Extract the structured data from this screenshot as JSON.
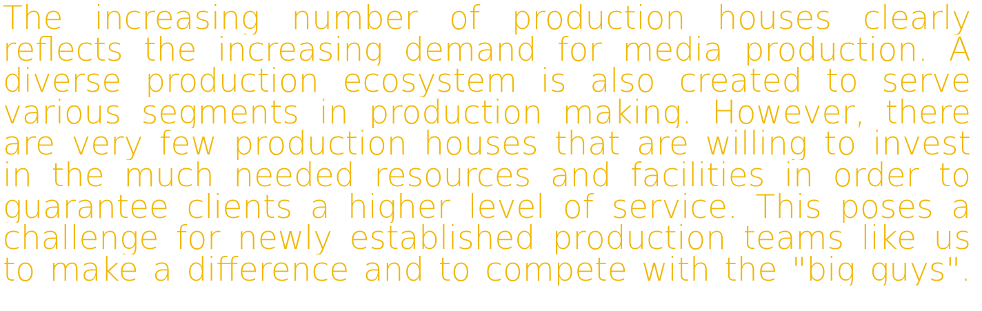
{
  "paragraph": {
    "lines": [
      "The increasing number of production houses clearly",
      "reflects the increasing demand for media production. A",
      "diverse production ecosystem is also created to serve",
      "various segments in production making. However, there",
      "are very few production houses that are willing to invest",
      "in the much needed resources and facilities in order to",
      "guarantee clients a higher level of service. This poses a",
      "challenge for newly established production teams like us",
      "to make a difference and to compete with the \"big guys\"."
    ]
  },
  "colors": {
    "text": "#f2b705",
    "background": "#ffffff"
  }
}
